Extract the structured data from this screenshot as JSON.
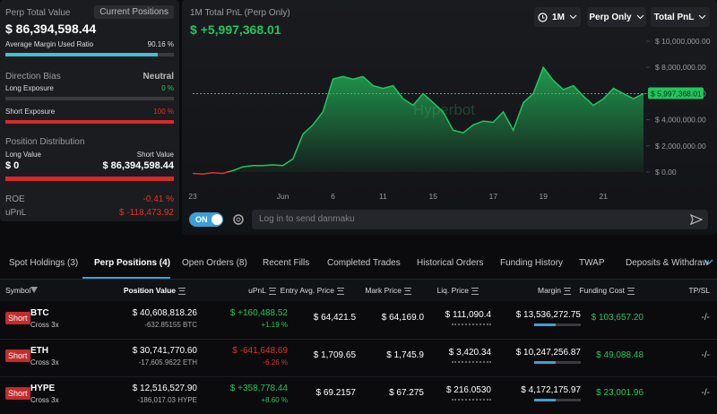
{
  "panel": {
    "title": "Perp Total Value",
    "view": "Current Positions",
    "total": "$ 86,394,598.44",
    "margin_ratio": {
      "label": "Average Margin Used Ratio",
      "value": 90.16,
      "value_label": "90.16 %"
    },
    "direction_bias": {
      "label": "Direction Bias",
      "value": "Neutral"
    },
    "long_exposure": {
      "label": "Long Exposure",
      "value": 0,
      "value_label": "0 %"
    },
    "short_exposure": {
      "label": "Short Exposure",
      "value": 100,
      "value_label": "100 %"
    },
    "distribution": {
      "label": "Position Distribution",
      "long_label": "Long Value",
      "short_label": "Short Value",
      "long_value": "$ 0",
      "short_value": "$ 86,394,598.44"
    },
    "roe": {
      "label": "ROE",
      "value": "-0.41 %"
    },
    "upnl": {
      "label": "uPnL",
      "value": "$ -118,473.92"
    }
  },
  "chart_data": {
    "type": "area",
    "title": "1M Total PnL (Perp Only)",
    "subtitle": "$ +5,997,368.01",
    "watermark": "Hyperbot",
    "categories": [
      "23",
      null,
      null,
      null,
      null,
      null,
      null,
      null,
      null,
      "Jun",
      null,
      null,
      null,
      null,
      "6",
      null,
      null,
      null,
      null,
      "11",
      null,
      null,
      null,
      null,
      "15",
      null,
      null,
      null,
      null,
      null,
      "17",
      null,
      null,
      null,
      null,
      "19",
      null,
      null,
      null,
      null,
      null,
      "21",
      null,
      null,
      null,
      null
    ],
    "values": [
      -100000,
      -150000,
      -50000,
      -100000,
      100000,
      400000,
      500000,
      500000,
      550000,
      500000,
      1000000,
      2900000,
      3600000,
      4600000,
      7100000,
      7300000,
      7100000,
      7300000,
      6600000,
      6400000,
      6600000,
      5600000,
      5100000,
      6000000,
      5300000,
      4600000,
      3200000,
      3000000,
      3600000,
      3900000,
      3800000,
      4600000,
      3200000,
      5300000,
      6000000,
      8000000,
      7000000,
      6300000,
      6600000,
      5800000,
      5100000,
      5600000,
      6400000,
      6000000,
      5600000,
      5997368.01
    ],
    "current_value_label": "$ 5,997,368.01",
    "color": "#22c55e",
    "negative_color": "#e0312f",
    "ylim": [
      0,
      10000000
    ],
    "yticks": [
      {
        "value": 0,
        "label": "$ 0.00"
      },
      {
        "value": 2000000,
        "label": "$ 2,000,000.00"
      },
      {
        "value": 4000000,
        "label": "$ 4,000,000.00"
      },
      {
        "value": 6000000,
        "label": "$ 6,000,000.00"
      },
      {
        "value": 8000000,
        "label": "$ 8,000,000.00"
      },
      {
        "value": 10000000,
        "label": "$ 10,000,000.00"
      }
    ],
    "grid": false
  },
  "controls": {
    "period": "1M",
    "scope": "Perp Only",
    "metric": "Total PnL",
    "toggle": "ON",
    "danmaku_placeholder": "Log in to send danmaku"
  },
  "tabs": {
    "items": [
      "Spot Holdings (3)",
      "Perp Positions (4)",
      "Open Orders (8)",
      "Recent Fills",
      "Completed Trades",
      "Historical Orders",
      "Funding History",
      "TWAP",
      "Deposits & Withdraw"
    ],
    "active": 1
  },
  "table": {
    "columns": [
      "Symbol",
      "Position Value",
      "uPnL",
      "Entry Avg. Price",
      "Mark Price",
      "Liq. Price",
      "Margin",
      "Funding Cost",
      "TP/SL"
    ],
    "rows": [
      {
        "side": "Short",
        "symbol": "BTC",
        "mode": "Cross 3x",
        "position_value": "$ 40,608,818.26",
        "size": "-632.85155 BTC",
        "upnl": "$ +160,488.52",
        "upnl_pct": "+1.19 %",
        "upnl_color": "#22c55e",
        "entry": "$ 64,421.5",
        "mark": "$ 64,169.0",
        "liq": "$ 111,090.4",
        "margin": "$ 13,536,272.75",
        "funding": "$ 103,657.20",
        "tpsl": "-/-"
      },
      {
        "side": "Short",
        "symbol": "ETH",
        "mode": "Cross 3x",
        "position_value": "$ 30,741,770.60",
        "size": "-17,605.9622 ETH",
        "upnl": "$ -641,648.69",
        "upnl_pct": "-6.26 %",
        "upnl_color": "#e0312f",
        "entry": "$ 1,709.65",
        "mark": "$ 1,745.9",
        "liq": "$ 3,420.34",
        "margin": "$ 10,247,256.87",
        "funding": "$ 49,088.48",
        "tpsl": "-/-"
      },
      {
        "side": "Short",
        "symbol": "HYPE",
        "mode": "Cross 3x",
        "position_value": "$ 12,516,527.90",
        "size": "-186,017.03 HYPE",
        "upnl": "$ +358,778.44",
        "upnl_pct": "+8.60 %",
        "upnl_color": "#22c55e",
        "entry": "$ 69.2157",
        "mark": "$ 67.275",
        "liq": "$ 216.0530",
        "margin": "$ 4,172,175.97",
        "funding": "$ 23,001.96",
        "tpsl": "-/-"
      }
    ]
  }
}
